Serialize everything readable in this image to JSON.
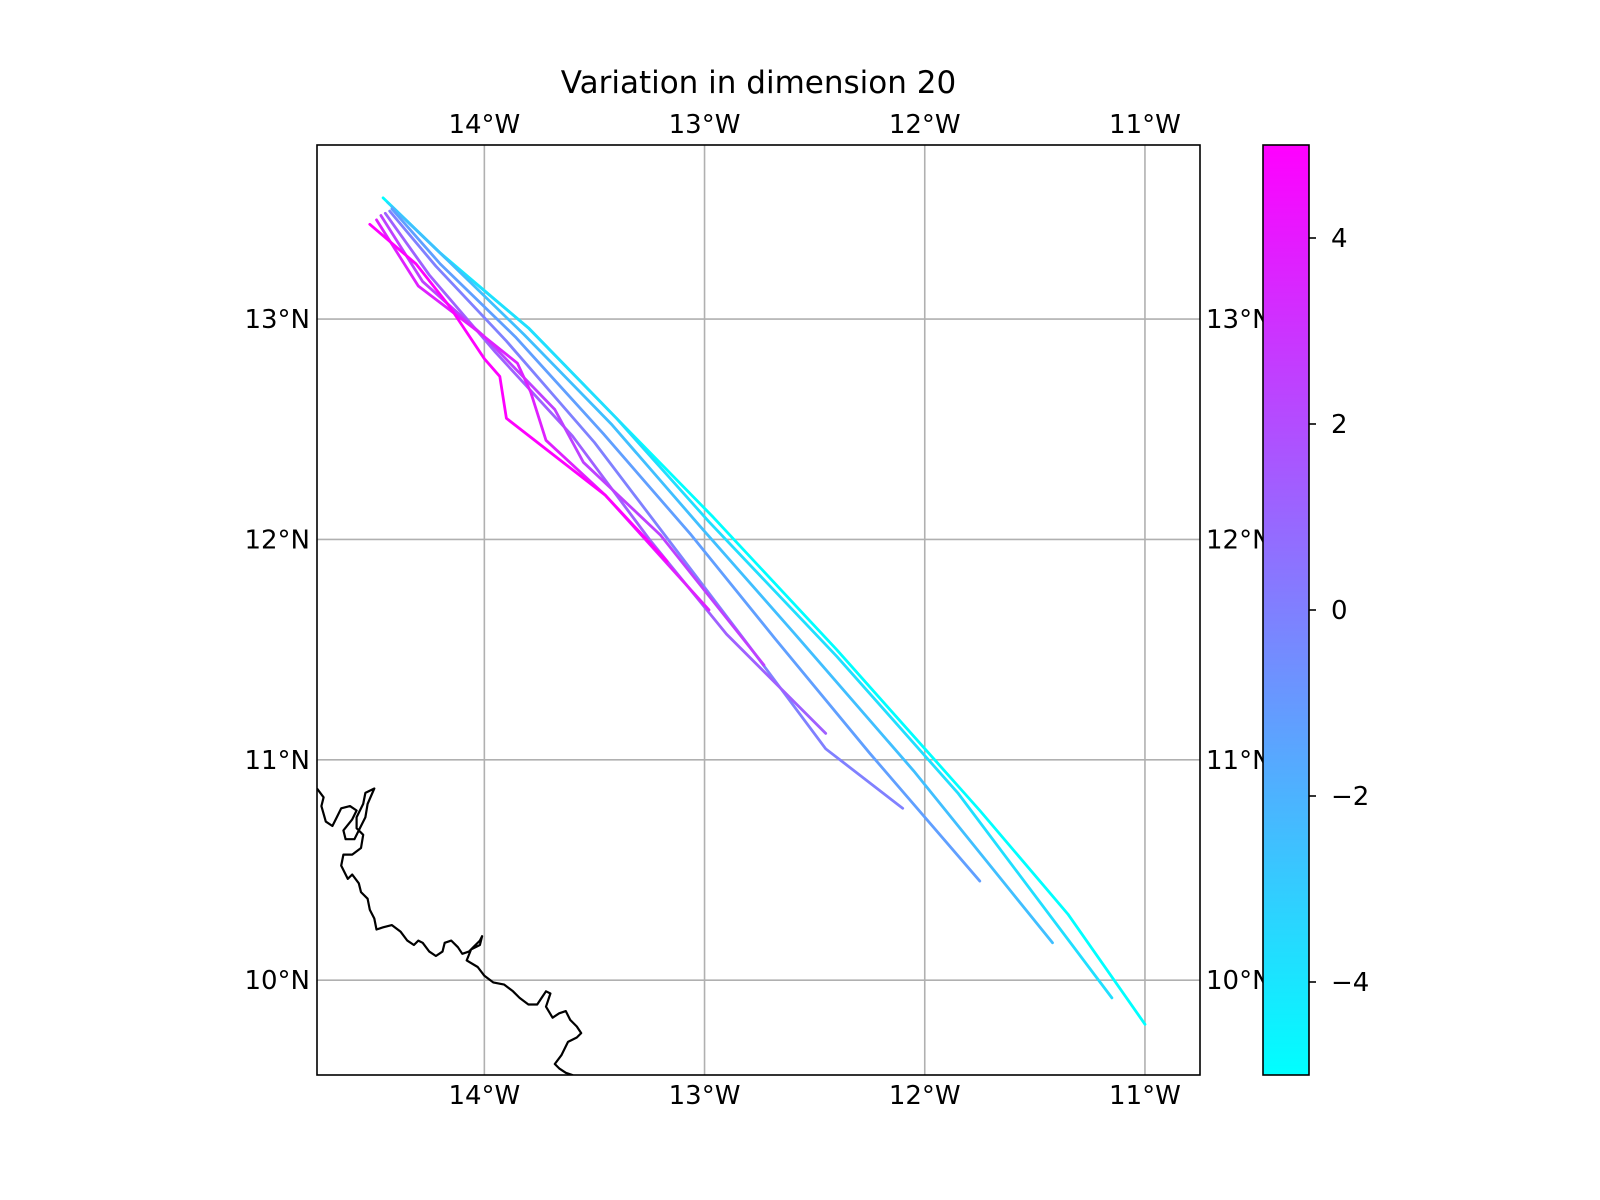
{
  "chart_data": {
    "type": "line",
    "title": "Variation in dimension 20",
    "projection": "map",
    "xlim": [
      -14.76,
      -10.75
    ],
    "ylim": [
      9.57,
      13.79
    ],
    "x_ticks": [
      {
        "value": -14,
        "label": "14°W"
      },
      {
        "value": -13,
        "label": "13°W"
      },
      {
        "value": -12,
        "label": "12°W"
      },
      {
        "value": -11,
        "label": "11°W"
      }
    ],
    "y_ticks": [
      {
        "value": 10,
        "label": "10°N"
      },
      {
        "value": 11,
        "label": "11°N"
      },
      {
        "value": 12,
        "label": "12°N"
      },
      {
        "value": 13,
        "label": "13°N"
      }
    ],
    "grid": true,
    "coastline_color": "#000000",
    "coastline": [
      [
        -14.76,
        10.87
      ],
      [
        -14.73,
        10.83
      ],
      [
        -14.74,
        10.79
      ],
      [
        -14.72,
        10.72
      ],
      [
        -14.69,
        10.7
      ],
      [
        -14.67,
        10.74
      ],
      [
        -14.65,
        10.78
      ],
      [
        -14.61,
        10.79
      ],
      [
        -14.58,
        10.77
      ],
      [
        -14.6,
        10.73
      ],
      [
        -14.64,
        10.68
      ],
      [
        -14.63,
        10.64
      ],
      [
        -14.59,
        10.64
      ],
      [
        -14.57,
        10.68
      ],
      [
        -14.54,
        10.74
      ],
      [
        -14.53,
        10.8
      ],
      [
        -14.5,
        10.87
      ],
      [
        -14.54,
        10.85
      ],
      [
        -14.55,
        10.8
      ],
      [
        -14.58,
        10.74
      ],
      [
        -14.58,
        10.69
      ],
      [
        -14.55,
        10.66
      ],
      [
        -14.56,
        10.6
      ],
      [
        -14.6,
        10.57
      ],
      [
        -14.64,
        10.57
      ],
      [
        -14.65,
        10.52
      ],
      [
        -14.62,
        10.46
      ],
      [
        -14.6,
        10.48
      ],
      [
        -14.57,
        10.44
      ],
      [
        -14.56,
        10.4
      ],
      [
        -14.53,
        10.37
      ],
      [
        -14.52,
        10.32
      ],
      [
        -14.5,
        10.28
      ],
      [
        -14.49,
        10.23
      ],
      [
        -14.46,
        10.24
      ],
      [
        -14.42,
        10.25
      ],
      [
        -14.38,
        10.22
      ],
      [
        -14.35,
        10.18
      ],
      [
        -14.32,
        10.16
      ],
      [
        -14.3,
        10.18
      ],
      [
        -14.28,
        10.17
      ],
      [
        -14.25,
        10.13
      ],
      [
        -14.22,
        10.11
      ],
      [
        -14.19,
        10.13
      ],
      [
        -14.18,
        10.17
      ],
      [
        -14.15,
        10.18
      ],
      [
        -14.12,
        10.15
      ],
      [
        -14.1,
        10.12
      ],
      [
        -14.07,
        10.13
      ],
      [
        -14.05,
        10.15
      ],
      [
        -14.02,
        10.18
      ],
      [
        -14.01,
        10.2
      ],
      [
        -14.02,
        10.16
      ],
      [
        -14.06,
        10.14
      ],
      [
        -14.08,
        10.09
      ],
      [
        -14.03,
        10.06
      ],
      [
        -14.0,
        10.02
      ],
      [
        -13.96,
        9.99
      ],
      [
        -13.91,
        9.98
      ],
      [
        -13.87,
        9.95
      ],
      [
        -13.84,
        9.92
      ],
      [
        -13.8,
        9.89
      ],
      [
        -13.76,
        9.89
      ],
      [
        -13.74,
        9.92
      ],
      [
        -13.72,
        9.95
      ],
      [
        -13.7,
        9.94
      ],
      [
        -13.72,
        9.88
      ],
      [
        -13.69,
        9.83
      ],
      [
        -13.66,
        9.85
      ],
      [
        -13.63,
        9.86
      ],
      [
        -13.61,
        9.82
      ],
      [
        -13.58,
        9.79
      ],
      [
        -13.56,
        9.76
      ],
      [
        -13.58,
        9.74
      ],
      [
        -13.62,
        9.72
      ],
      [
        -13.65,
        9.66
      ],
      [
        -13.68,
        9.62
      ],
      [
        -13.66,
        9.6
      ],
      [
        -13.63,
        9.58
      ],
      [
        -13.6,
        9.57
      ],
      [
        -13.58,
        9.55
      ]
    ],
    "colorbar": {
      "colormap": "cool",
      "low_color": "#00ffff",
      "high_color": "#ff00ff",
      "range": [
        -5,
        5
      ],
      "ticks": [
        {
          "value": 4,
          "label": "4"
        },
        {
          "value": 2,
          "label": "2"
        },
        {
          "value": 0,
          "label": "0"
        },
        {
          "value": -2,
          "label": "−2"
        },
        {
          "value": -4,
          "label": "−4"
        }
      ]
    },
    "series": [
      {
        "value": -5.0,
        "points": [
          [
            -14.46,
            13.55
          ],
          [
            -14.2,
            13.3
          ],
          [
            -13.8,
            12.96
          ],
          [
            -13.4,
            12.55
          ],
          [
            -12.96,
            12.1
          ],
          [
            -12.4,
            11.5
          ],
          [
            -11.75,
            10.77
          ],
          [
            -11.35,
            10.3
          ],
          [
            -11.0,
            9.8
          ]
        ]
      },
      {
        "value": -3.75,
        "points": [
          [
            -14.44,
            13.53
          ],
          [
            -14.18,
            13.28
          ],
          [
            -13.8,
            12.96
          ],
          [
            -13.4,
            12.55
          ],
          [
            -12.98,
            12.08
          ],
          [
            -12.4,
            11.47
          ],
          [
            -11.85,
            10.85
          ],
          [
            -11.15,
            9.92
          ]
        ]
      },
      {
        "value": -2.5,
        "points": [
          [
            -14.42,
            13.51
          ],
          [
            -14.18,
            13.28
          ],
          [
            -13.82,
            12.93
          ],
          [
            -13.42,
            12.52
          ],
          [
            -13.02,
            12.06
          ],
          [
            -12.58,
            11.56
          ],
          [
            -12.05,
            10.95
          ],
          [
            -11.42,
            10.17
          ]
        ]
      },
      {
        "value": -1.25,
        "points": [
          [
            -14.42,
            13.5
          ],
          [
            -14.2,
            13.25
          ],
          [
            -13.86,
            12.92
          ],
          [
            -13.46,
            12.48
          ],
          [
            -13.06,
            12.02
          ],
          [
            -12.68,
            11.55
          ],
          [
            -12.25,
            11.03
          ],
          [
            -11.75,
            10.45
          ]
        ]
      },
      {
        "value": 0.0,
        "points": [
          [
            -14.43,
            13.49
          ],
          [
            -14.22,
            13.24
          ],
          [
            -13.9,
            12.9
          ],
          [
            -13.5,
            12.44
          ],
          [
            -13.15,
            11.98
          ],
          [
            -12.8,
            11.52
          ],
          [
            -12.45,
            11.05
          ],
          [
            -12.1,
            10.78
          ]
        ]
      },
      {
        "value": 1.25,
        "points": [
          [
            -14.45,
            13.48
          ],
          [
            -14.25,
            13.2
          ],
          [
            -13.95,
            12.85
          ],
          [
            -13.6,
            12.47
          ],
          [
            -13.25,
            12.0
          ],
          [
            -12.9,
            11.57
          ],
          [
            -12.45,
            11.12
          ]
        ]
      },
      {
        "value": 2.5,
        "points": [
          [
            -14.47,
            13.47
          ],
          [
            -14.28,
            13.17
          ],
          [
            -14.0,
            12.92
          ],
          [
            -13.68,
            12.59
          ],
          [
            -13.55,
            12.35
          ],
          [
            -13.2,
            12.02
          ],
          [
            -12.73,
            11.43
          ]
        ]
      },
      {
        "value": 3.75,
        "points": [
          [
            -14.49,
            13.45
          ],
          [
            -14.3,
            13.15
          ],
          [
            -14.05,
            12.96
          ],
          [
            -13.85,
            12.8
          ],
          [
            -13.79,
            12.67
          ],
          [
            -13.72,
            12.45
          ],
          [
            -13.45,
            12.2
          ],
          [
            -12.98,
            11.68
          ]
        ]
      },
      {
        "value": 5.0,
        "points": [
          [
            -14.52,
            13.43
          ],
          [
            -14.31,
            13.25
          ],
          [
            -14.16,
            13.06
          ],
          [
            -14.0,
            12.82
          ],
          [
            -13.93,
            12.74
          ],
          [
            -13.9,
            12.55
          ],
          [
            -13.45,
            12.2
          ],
          [
            -13.17,
            11.9
          ]
        ]
      }
    ]
  }
}
